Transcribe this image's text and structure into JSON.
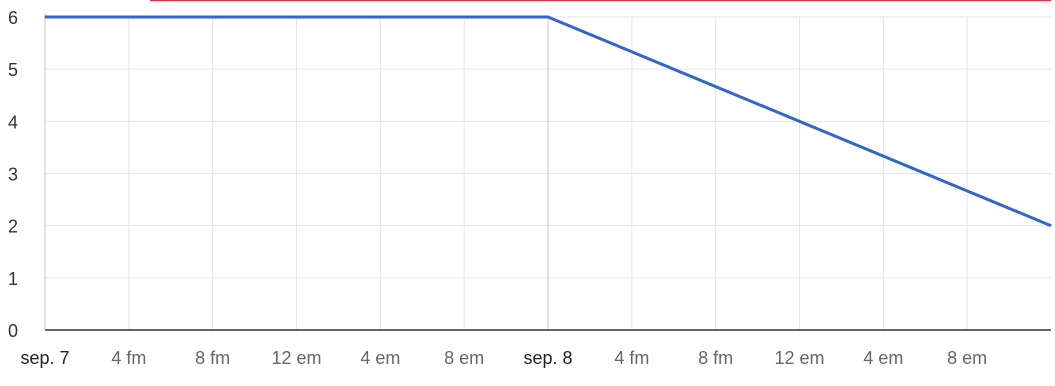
{
  "chart_data": {
    "type": "line",
    "title": "",
    "xlabel": "",
    "ylabel": "",
    "ylim": [
      0,
      6
    ],
    "yticks": [
      0,
      1,
      2,
      3,
      4,
      5,
      6
    ],
    "xlim": [
      "2023-09-07T00:00",
      "2023-09-09T00:00"
    ],
    "xticks": [
      {
        "t": "2023-09-07T00:00",
        "label": "sep. 7",
        "major": true
      },
      {
        "t": "2023-09-07T04:00",
        "label": "4 fm",
        "major": false
      },
      {
        "t": "2023-09-07T08:00",
        "label": "8 fm",
        "major": false
      },
      {
        "t": "2023-09-07T12:00",
        "label": "12 em",
        "major": false
      },
      {
        "t": "2023-09-07T16:00",
        "label": "4 em",
        "major": false
      },
      {
        "t": "2023-09-07T20:00",
        "label": "8 em",
        "major": false
      },
      {
        "t": "2023-09-08T00:00",
        "label": "sep. 8",
        "major": true
      },
      {
        "t": "2023-09-08T04:00",
        "label": "4 fm",
        "major": false
      },
      {
        "t": "2023-09-08T08:00",
        "label": "8 fm",
        "major": false
      },
      {
        "t": "2023-09-08T12:00",
        "label": "12 em",
        "major": false
      },
      {
        "t": "2023-09-08T16:00",
        "label": "4 em",
        "major": false
      },
      {
        "t": "2023-09-08T20:00",
        "label": "8 em",
        "major": false
      }
    ],
    "grid": true,
    "legend": "none",
    "series": [
      {
        "color": "#3366cc",
        "points": [
          {
            "t": "2023-09-07T00:00",
            "y": 6
          },
          {
            "t": "2023-09-08T00:00",
            "y": 6
          },
          {
            "t": "2023-09-09T00:00",
            "y": 2
          }
        ]
      }
    ],
    "colors": {
      "line": "#3366cc",
      "top_band": "#dc3545",
      "grid": "#e6e6e6",
      "major_grid": "#c8c8c8",
      "axis": "#333333",
      "major_label": "#222222",
      "minor_label": "#666666"
    }
  }
}
